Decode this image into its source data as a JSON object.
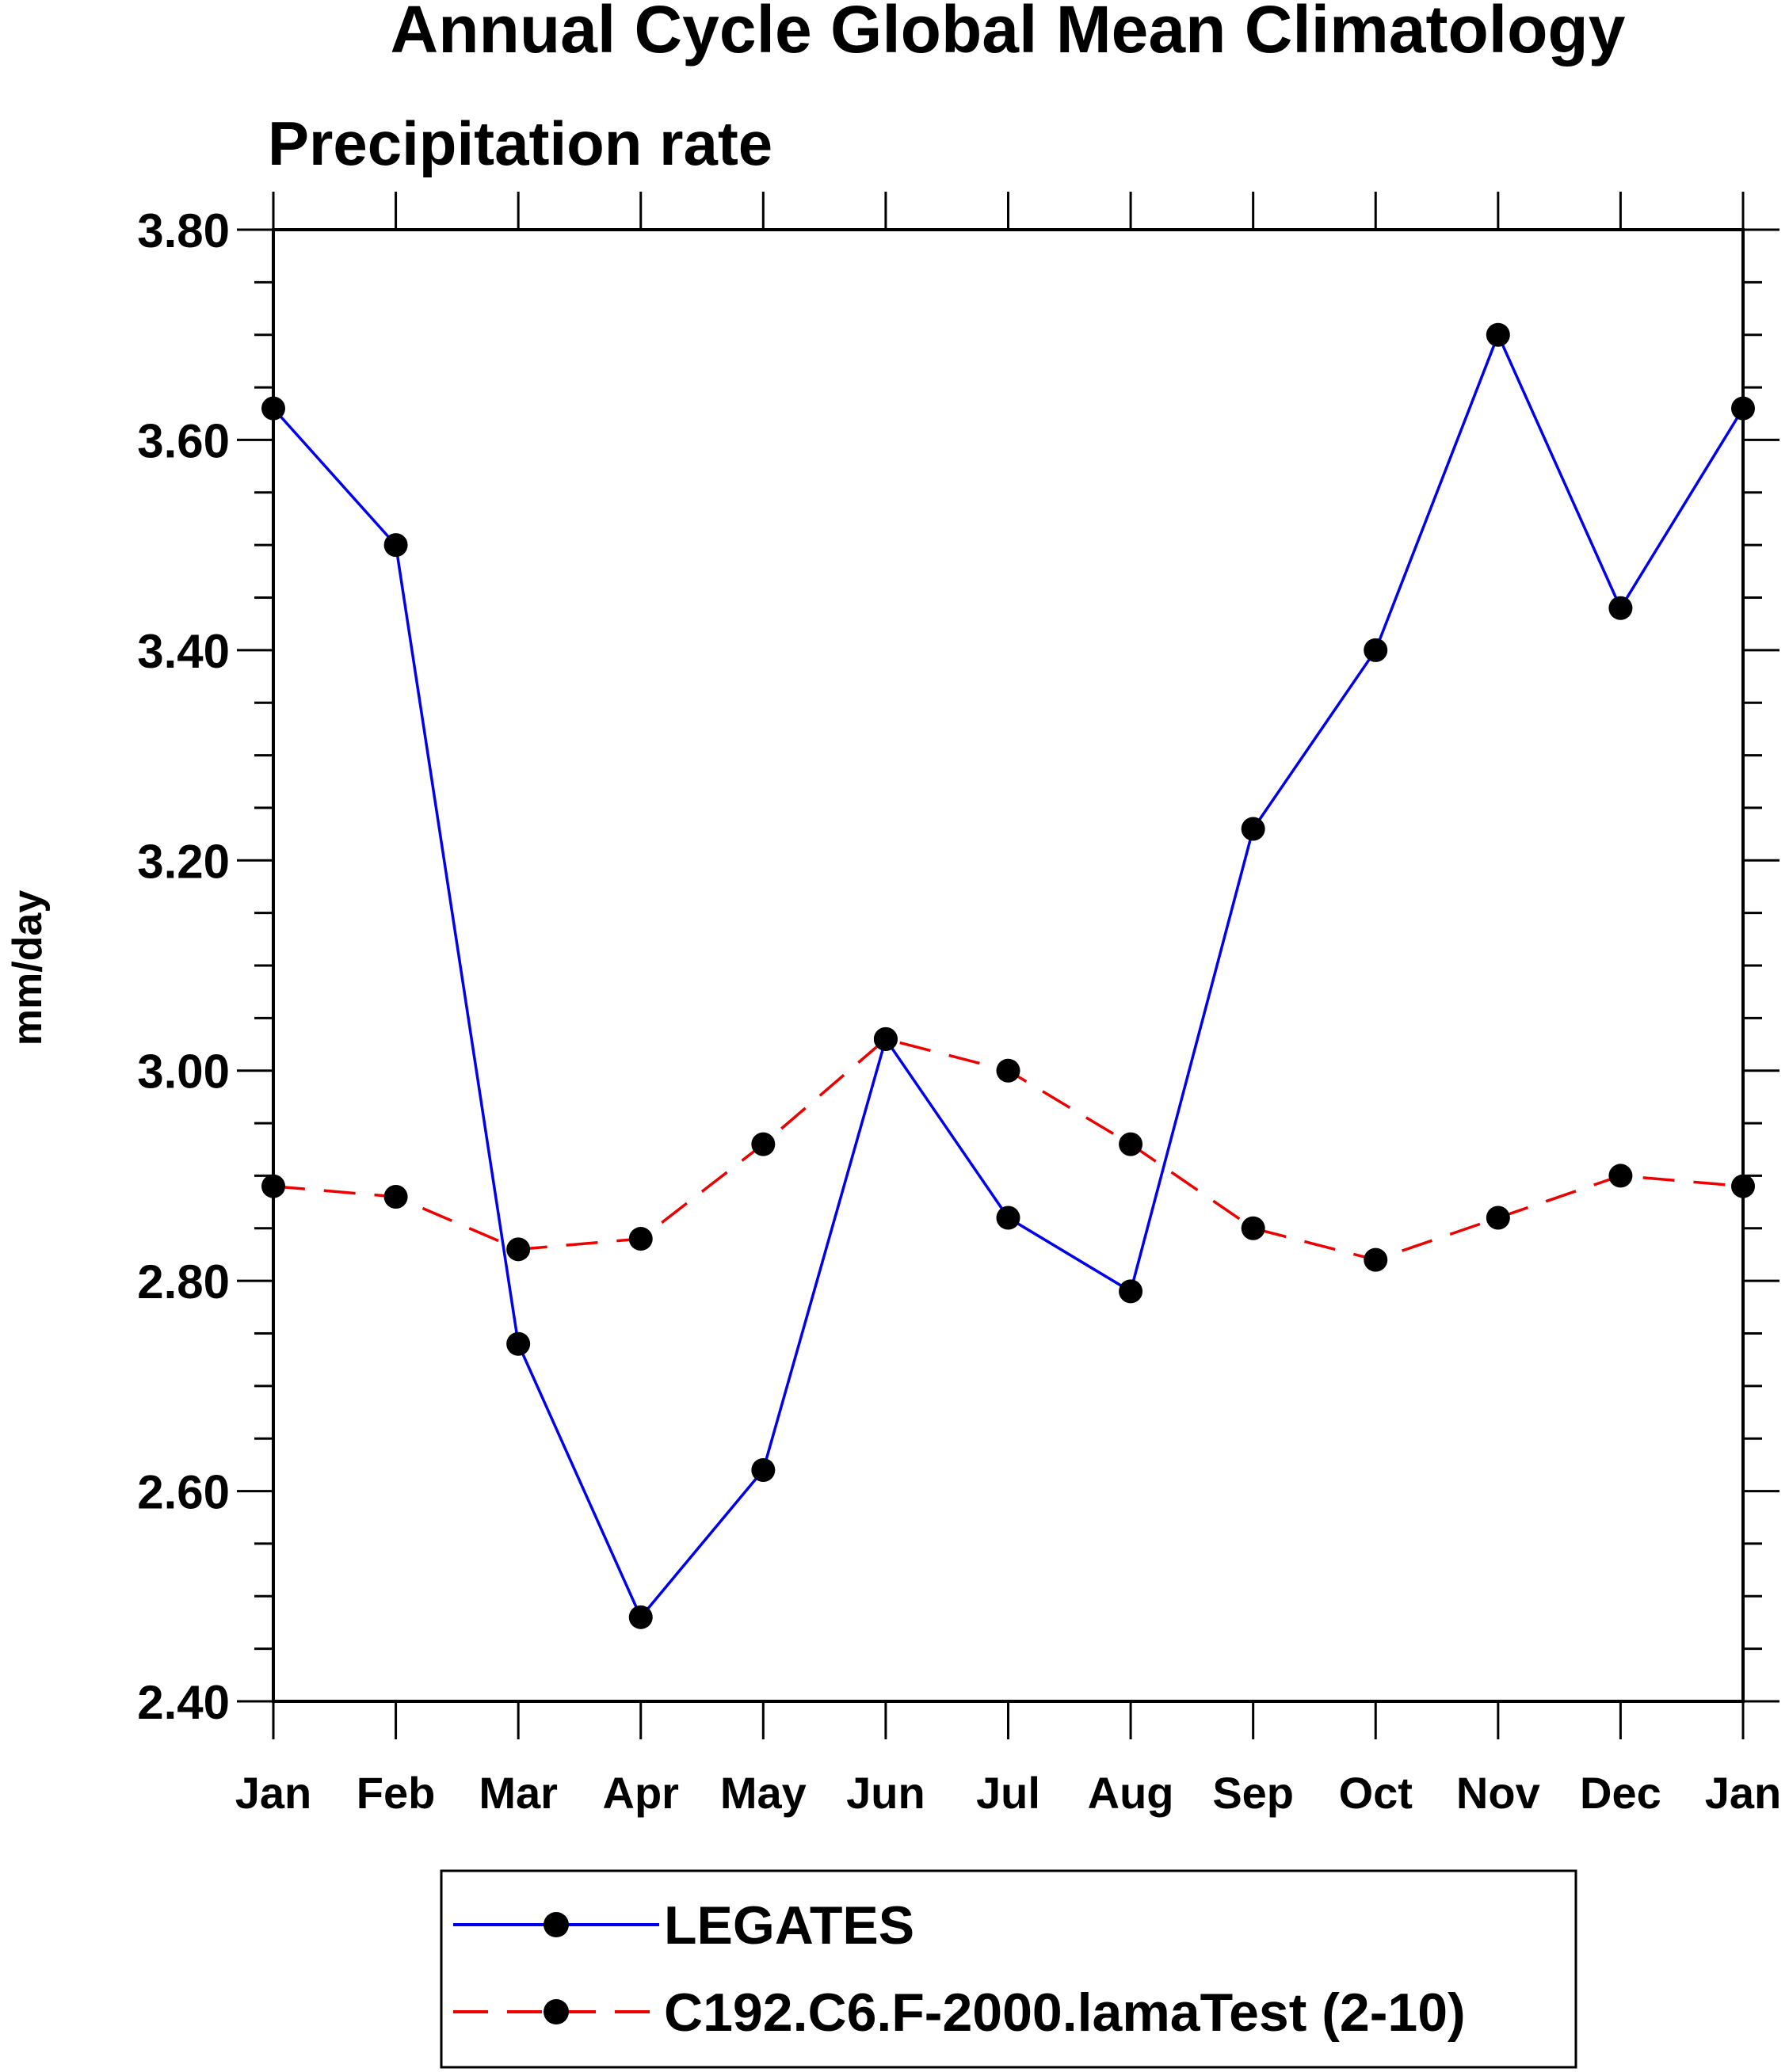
{
  "chart_data": {
    "type": "line",
    "title": "Annual Cycle Global Mean Climatology",
    "subtitle": "Precipitation rate",
    "xlabel": "",
    "ylabel": "mm/day",
    "categories": [
      "Jan",
      "Feb",
      "Mar",
      "Apr",
      "May",
      "Jun",
      "Jul",
      "Aug",
      "Sep",
      "Oct",
      "Nov",
      "Dec",
      "Jan"
    ],
    "ylim": [
      2.4,
      3.8
    ],
    "yticks": [
      "2.40",
      "2.60",
      "2.80",
      "3.00",
      "3.20",
      "3.40",
      "3.60",
      "3.80"
    ],
    "grid": false,
    "legend_position": "bottom",
    "series": [
      {
        "name": "LEGATES",
        "color": "#0000ee",
        "dash": "solid",
        "marker": "filled-circle",
        "values": [
          3.63,
          3.5,
          2.74,
          2.48,
          2.62,
          3.03,
          2.86,
          2.79,
          3.23,
          3.4,
          3.7,
          3.44,
          3.63
        ]
      },
      {
        "name": "C192.C6.F-2000.lamaTest (2-10)",
        "color": "#ee0000",
        "dash": "dashed",
        "marker": "filled-circle",
        "values": [
          2.89,
          2.88,
          2.83,
          2.84,
          2.93,
          3.03,
          3.0,
          2.93,
          2.85,
          2.82,
          2.86,
          2.9,
          2.89
        ]
      }
    ]
  }
}
